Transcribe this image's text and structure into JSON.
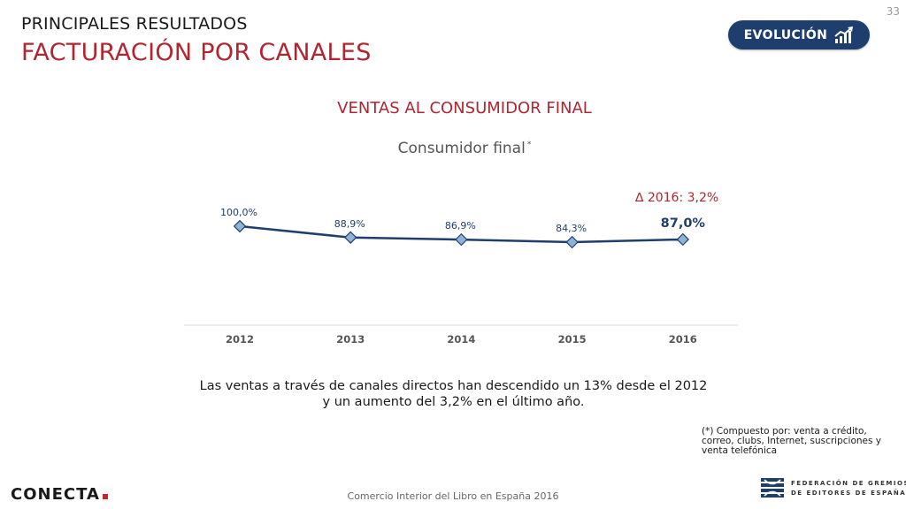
{
  "header": {
    "page_number": "33",
    "section_title": "PRINCIPALES RESULTADOS",
    "main_title": "FACTURACIÓN POR CANALES",
    "badge_label": "EVOLUCIÓN",
    "badge_icon": "chart-up-icon"
  },
  "chart_heading": "VENTAS AL CONSUMIDOR FINAL",
  "chart_data": {
    "type": "line",
    "title": "Consumidor final",
    "title_mark": "*",
    "categories": [
      "2012",
      "2013",
      "2014",
      "2015",
      "2016"
    ],
    "series": [
      {
        "values": [
          100.0,
          88.9,
          86.9,
          84.3,
          87.0
        ],
        "labels": [
          "100,0%",
          "88,9%",
          "86,9%",
          "84,3%",
          "87,0%"
        ],
        "color": "#1e3f6e"
      }
    ],
    "ylim": [
      0,
      100
    ],
    "grid": false,
    "annotation": "∆ 2016:  3,2%",
    "annotation_color": "#b02530"
  },
  "summary": {
    "line1": "Las ventas a través de canales directos han descendido un 13% desde el 2012",
    "line2": "y un aumento del 3,2% en el último año."
  },
  "footnote": {
    "line1": "(*) Compuesto por:  venta a crédito,",
    "line2": "correo, clubs, Internet, suscripciones y",
    "line3": "venta telefónica"
  },
  "footer": {
    "brand": "CONECTA",
    "source": "Comercio Interior del Libro en España 2016",
    "org_line1": "FEDERACIÓN DE GREMIOS",
    "org_line2": "DE EDITORES DE ESPAÑA"
  },
  "colors": {
    "accent_red": "#b02530",
    "navy": "#1e3f6e"
  }
}
